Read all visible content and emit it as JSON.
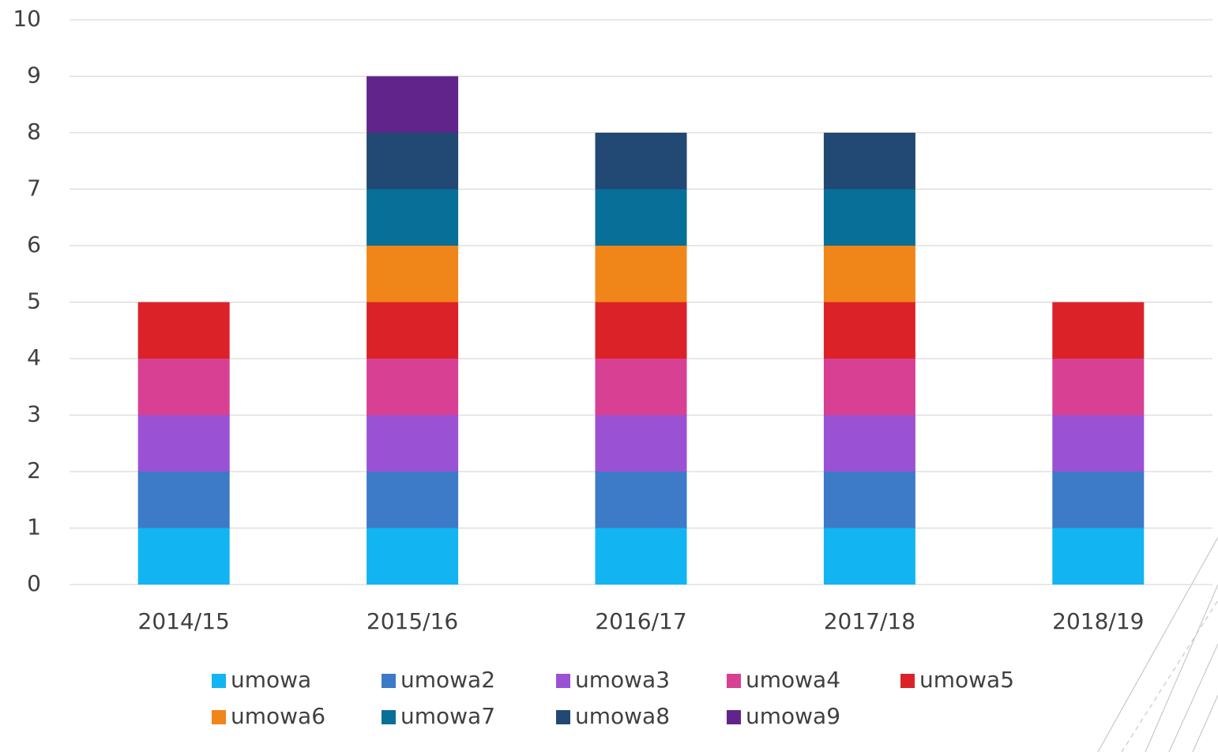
{
  "chart_data": {
    "type": "stacked_bar",
    "categories": [
      "2014/15",
      "2015/16",
      "2016/17",
      "2017/18",
      "2018/19"
    ],
    "series": [
      {
        "name": "umowa",
        "color": "#12b5f2",
        "values": [
          1,
          1,
          1,
          1,
          1
        ]
      },
      {
        "name": "umowa2",
        "color": "#3d7ac8",
        "values": [
          1,
          1,
          1,
          1,
          1
        ]
      },
      {
        "name": "umowa3",
        "color": "#9b51d3",
        "values": [
          1,
          1,
          1,
          1,
          1
        ]
      },
      {
        "name": "umowa4",
        "color": "#d84094",
        "values": [
          1,
          1,
          1,
          1,
          1
        ]
      },
      {
        "name": "umowa5",
        "color": "#dc2229",
        "values": [
          1,
          1,
          1,
          1,
          1
        ]
      },
      {
        "name": "umowa6",
        "color": "#f08519",
        "values": [
          0,
          1,
          1,
          1,
          0
        ]
      },
      {
        "name": "umowa7",
        "color": "#086f98",
        "values": [
          0,
          1,
          1,
          1,
          0
        ]
      },
      {
        "name": "umowa8",
        "color": "#224874",
        "values": [
          0,
          1,
          1,
          1,
          0
        ]
      },
      {
        "name": "umowa9",
        "color": "#61248b",
        "values": [
          0,
          1,
          0,
          0,
          0
        ]
      }
    ],
    "ylim": [
      0,
      10
    ],
    "yticks": [
      0,
      1,
      2,
      3,
      4,
      5,
      6,
      7,
      8,
      9,
      10
    ],
    "grid": true,
    "legend": "bottom"
  }
}
